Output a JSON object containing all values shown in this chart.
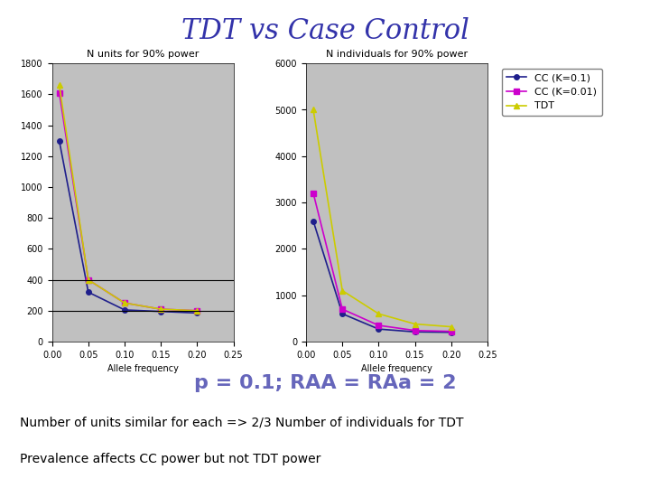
{
  "title": "TDT vs Case Control",
  "title_color": "#3333aa",
  "title_fontsize": 22,
  "subtitle1": "N units for 90% power",
  "subtitle2": "N individuals for 90% power",
  "x": [
    0.01,
    0.05,
    0.1,
    0.15,
    0.2
  ],
  "plot1": {
    "cc_k01": [
      1300,
      320,
      205,
      195,
      185
    ],
    "cc_k001": [
      1610,
      400,
      250,
      210,
      200
    ],
    "tdt": [
      1660,
      400,
      250,
      210,
      200
    ],
    "ylim": [
      0,
      1800
    ],
    "yticks": [
      0,
      200,
      400,
      600,
      800,
      1000,
      1200,
      1400,
      1600,
      1800
    ],
    "hlines": [
      200,
      400
    ]
  },
  "plot2": {
    "cc_k01": [
      2600,
      600,
      270,
      210,
      200
    ],
    "cc_k001": [
      3200,
      700,
      350,
      240,
      220
    ],
    "tdt": [
      5000,
      1100,
      600,
      380,
      320
    ],
    "ylim": [
      0,
      6000
    ],
    "yticks": [
      0,
      1000,
      2000,
      3000,
      4000,
      5000,
      6000
    ]
  },
  "xlim": [
    0,
    0.25
  ],
  "xticks": [
    0,
    0.05,
    0.1,
    0.15,
    0.2,
    0.25
  ],
  "colors": {
    "cc_k01": "#1f1f8c",
    "cc_k001": "#cc00cc",
    "tdt": "#cccc00"
  },
  "legend_labels": [
    "CC (K=0.1)",
    "CC (K=0.01)",
    "TDT"
  ],
  "xlabel": "Allele frequency",
  "plot_bg": "#c0c0c0",
  "annotation1": "p = 0.1; RAA = RAa = 2",
  "annotation1_color": "#6666bb",
  "annotation1_fontsize": 16,
  "annotation2": "Number of units similar for each => 2/3 Number of individuals for TDT",
  "annotation3": "Prevalence affects CC power but not TDT power",
  "annotation_fontsize": 10
}
